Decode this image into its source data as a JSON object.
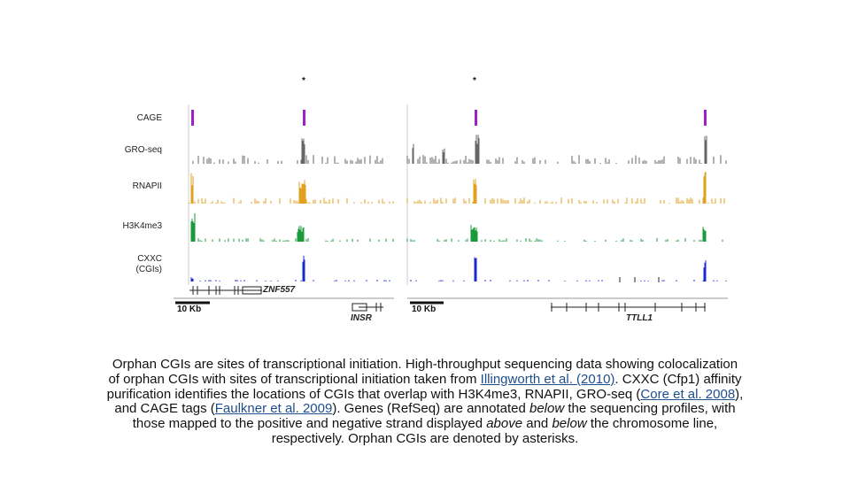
{
  "figure": {
    "asterisks": [
      "*",
      "*"
    ],
    "tracks": [
      {
        "label": "CAGE",
        "color": "#a020c8"
      },
      {
        "label": "GRO-seq",
        "color": "#555555"
      },
      {
        "label": "RNAPII",
        "color": "#e0a020"
      },
      {
        "label": "H3K4me3",
        "color": "#1a9a3a"
      },
      {
        "label": "CXXC\n(CGIs)",
        "color": "#1a2ad0"
      }
    ],
    "left_panel": {
      "scale": "10 Kb",
      "genes": [
        "ZNF557",
        "INSR"
      ]
    },
    "right_panel": {
      "scale": "10 Kb",
      "genes": [
        "TTLL1"
      ]
    }
  },
  "caption": {
    "p1": "Orphan CGIs are sites of transcriptional initiation. High-throughput sequencing data showing colocalization of orphan CGIs with sites of transcriptional initiation taken from ",
    "link1": "Illingworth et al. (2010)",
    "p2": ". CXXC (Cfp1) affinity purification identifies the locations of CGIs that overlap with H3K4me3, RNAPII, GRO-seq (",
    "link2": "Core et al. 2008",
    "p3": "), and CAGE tags (",
    "link3": "Faulkner et al. 2009",
    "p4": "). Genes (RefSeq) are annotated ",
    "em1": "below",
    "p5": " the sequencing profiles, with those mapped to the positive and negative strand displayed ",
    "em2": "above",
    "p6": " and ",
    "em3": "below",
    "p7": " the chromosome line, respectively. Orphan CGIs are denoted by asterisks."
  }
}
